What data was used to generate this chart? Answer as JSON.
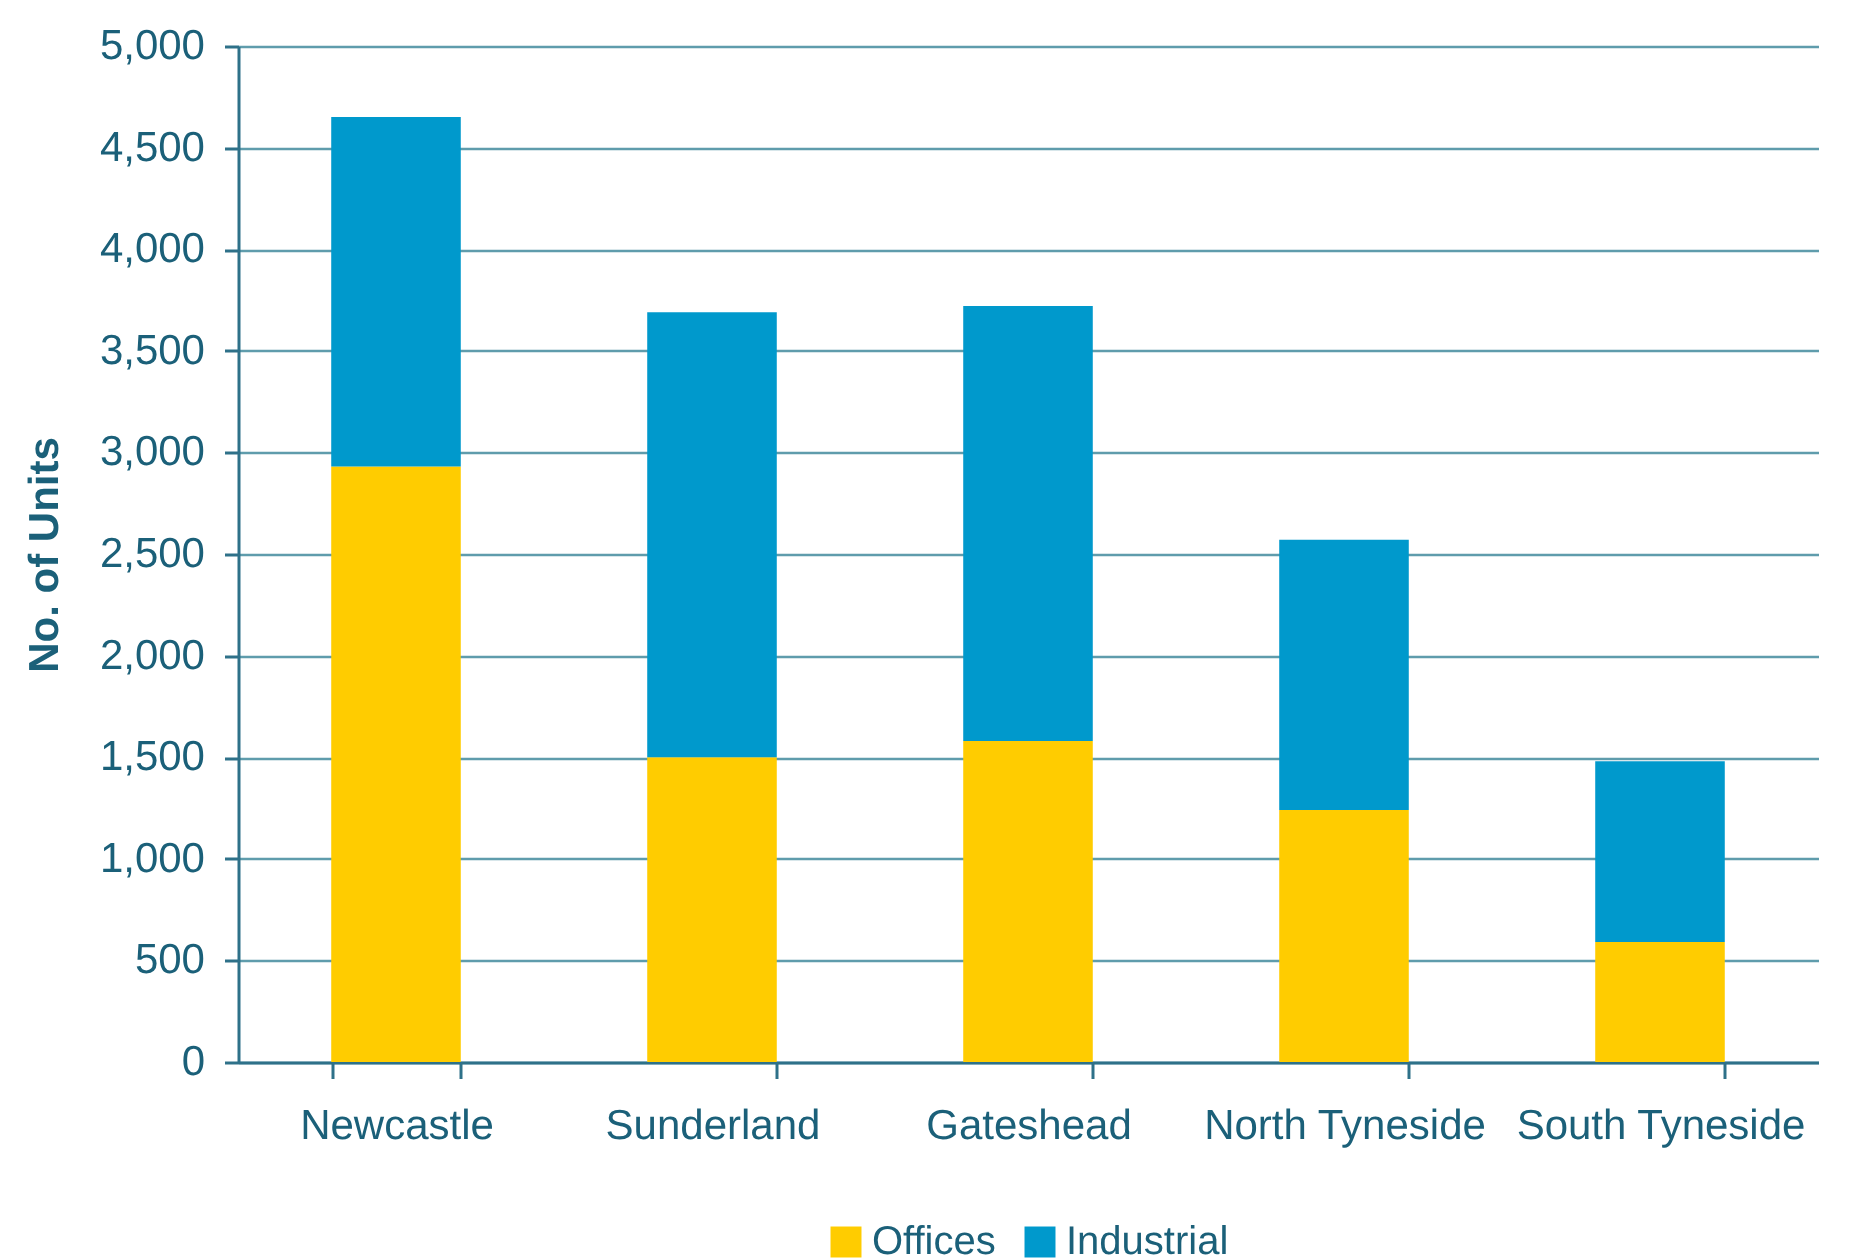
{
  "chart_data": {
    "type": "bar",
    "stacked": true,
    "categories": [
      "Newcastle",
      "Sunderland",
      "Gateshead",
      "North Tyneside",
      "South Tyneside"
    ],
    "ylabel": "No. of Units",
    "series": [
      {
        "name": "Offices",
        "color": "#ffcc00",
        "values": [
          2930,
          1500,
          1580,
          1240,
          590
        ]
      },
      {
        "name": "Industrial",
        "color": "#0099cc",
        "values": [
          1720,
          2190,
          2140,
          1330,
          890
        ]
      }
    ],
    "ylim": [
      0,
      5000
    ],
    "yticks": [
      0,
      500,
      {
        "value": 1000,
        "label": "1,000"
      },
      {
        "value": 1500,
        "label": "1,500"
      },
      {
        "value": 2000,
        "label": "2,000"
      },
      {
        "value": 2500,
        "label": "2,500"
      },
      {
        "value": 3000,
        "label": "3,000"
      },
      {
        "value": 3500,
        "label": "3,500"
      },
      {
        "value": 4000,
        "label": "4,000"
      },
      {
        "value": 4500,
        "label": "4,500"
      },
      {
        "value": 5000,
        "label": "5,000"
      }
    ],
    "grid": "y",
    "legend": "bottom"
  }
}
